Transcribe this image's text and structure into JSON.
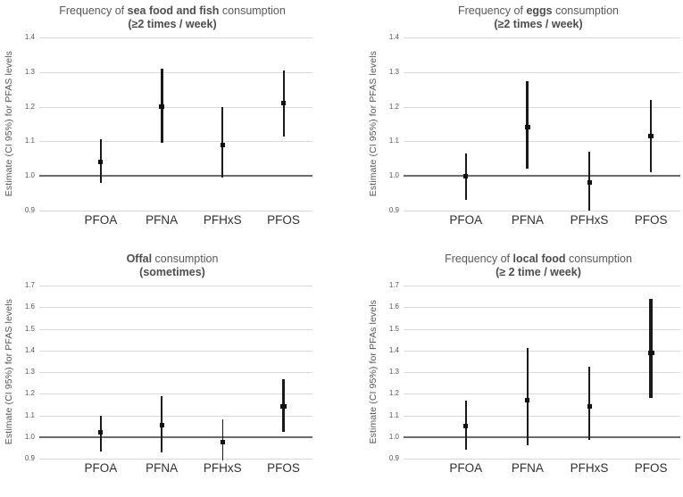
{
  "page": {
    "background": "#ffffff",
    "description_colors": {
      "grid": "#d9d9d9",
      "baseline": "#6b6b6b",
      "series": "#1a1a1a",
      "title_text": "#595959",
      "tick_text": "#595959",
      "category_text": "#303030"
    }
  },
  "chart_data": [
    {
      "id": "seafood-fish",
      "type": "scatter",
      "title_segments": [
        {
          "text": "Frequency of ",
          "bold": false
        },
        {
          "text": "sea food and fish",
          "bold": true
        },
        {
          "text": " consumption",
          "bold": false
        }
      ],
      "title_plain": "Frequency of sea food and fish consumption",
      "subtitle": "(≥2 times / week)",
      "ylabel": "Estimate (CI 95%) for PFAS levels",
      "categories": [
        "PFOA",
        "PFNA",
        "PFHxS",
        "PFOS"
      ],
      "ylim": [
        0.9,
        1.4
      ],
      "ytick_step": 0.1,
      "baseline": 1.0,
      "grid": true,
      "legend": "none",
      "series": [
        {
          "category": "PFOA",
          "estimate": 1.04,
          "ci_low": 0.98,
          "ci_high": 1.105,
          "line_weight": 1.5
        },
        {
          "category": "PFNA",
          "estimate": 1.2,
          "ci_low": 1.095,
          "ci_high": 1.31,
          "line_weight": 3
        },
        {
          "category": "PFHxS",
          "estimate": 1.09,
          "ci_low": 0.995,
          "ci_high": 1.2,
          "line_weight": 1.8
        },
        {
          "category": "PFOS",
          "estimate": 1.21,
          "ci_low": 1.115,
          "ci_high": 1.305,
          "line_weight": 2
        }
      ]
    },
    {
      "id": "eggs",
      "type": "scatter",
      "title_segments": [
        {
          "text": "Frequency of ",
          "bold": false
        },
        {
          "text": "eggs",
          "bold": true
        },
        {
          "text": " consumption",
          "bold": false
        }
      ],
      "title_plain": "Frequency of eggs consumption",
      "subtitle": "(≥2 times / week)",
      "ylabel": "Estimate (CI 95%) for PFAS levels",
      "categories": [
        "PFOA",
        "PFNA",
        "PFHxS",
        "PFOS"
      ],
      "ylim": [
        0.9,
        1.4
      ],
      "ytick_step": 0.1,
      "baseline": 1.0,
      "grid": true,
      "legend": "none",
      "series": [
        {
          "category": "PFOA",
          "estimate": 1.0,
          "ci_low": 0.93,
          "ci_high": 1.065,
          "line_weight": 1.5
        },
        {
          "category": "PFNA",
          "estimate": 1.14,
          "ci_low": 1.02,
          "ci_high": 1.275,
          "line_weight": 3
        },
        {
          "category": "PFHxS",
          "estimate": 0.98,
          "ci_low": 0.9,
          "ci_high": 1.07,
          "line_weight": 1.5
        },
        {
          "category": "PFOS",
          "estimate": 1.115,
          "ci_low": 1.01,
          "ci_high": 1.22,
          "line_weight": 2
        }
      ]
    },
    {
      "id": "offal",
      "type": "scatter",
      "title_segments": [
        {
          "text": "Offal",
          "bold": true
        },
        {
          "text": " consumption",
          "bold": false
        }
      ],
      "title_plain": "Offal consumption",
      "subtitle": "(sometimes)",
      "ylabel": "Estimate (CI 95%) for PFAS levels",
      "categories": [
        "PFOA",
        "PFNA",
        "PFHxS",
        "PFOS"
      ],
      "ylim": [
        0.9,
        1.7
      ],
      "ytick_step": 0.1,
      "baseline": 1.0,
      "grid": true,
      "legend": "none",
      "series": [
        {
          "category": "PFOA",
          "estimate": 1.02,
          "ci_low": 0.935,
          "ci_high": 1.1,
          "line_weight": 1.5
        },
        {
          "category": "PFNA",
          "estimate": 1.055,
          "ci_low": 0.93,
          "ci_high": 1.19,
          "line_weight": 1.5
        },
        {
          "category": "PFHxS",
          "estimate": 0.975,
          "ci_low": 0.89,
          "ci_high": 1.08,
          "line_weight": 1.5
        },
        {
          "category": "PFOS",
          "estimate": 1.14,
          "ci_low": 1.025,
          "ci_high": 1.265,
          "line_weight": 3
        }
      ]
    },
    {
      "id": "local-food",
      "type": "scatter",
      "title_segments": [
        {
          "text": "Frequency of ",
          "bold": false
        },
        {
          "text": "local food",
          "bold": true
        },
        {
          "text": " consumption",
          "bold": false
        }
      ],
      "title_plain": "Frequency of local food consumption",
      "subtitle": "(≥ 2 time / week)",
      "ylabel": "Estimate (CI 95%) for PFAs levels",
      "categories": [
        "PFOA",
        "PFNA",
        "PFHxS",
        "PFOS"
      ],
      "ylim": [
        0.9,
        1.7
      ],
      "ytick_step": 0.1,
      "baseline": 1.0,
      "grid": true,
      "legend": "none",
      "series": [
        {
          "category": "PFOA",
          "estimate": 1.05,
          "ci_low": 0.94,
          "ci_high": 1.17,
          "line_weight": 1.5
        },
        {
          "category": "PFNA",
          "estimate": 1.17,
          "ci_low": 0.96,
          "ci_high": 1.41,
          "line_weight": 1.5
        },
        {
          "category": "PFHxS",
          "estimate": 1.14,
          "ci_low": 0.985,
          "ci_high": 1.325,
          "line_weight": 1.5
        },
        {
          "category": "PFOS",
          "estimate": 1.39,
          "ci_low": 1.18,
          "ci_high": 1.64,
          "line_weight": 3.5
        }
      ]
    }
  ],
  "category_x_percents": [
    22.5,
    44.8,
    67.1,
    89.4
  ]
}
